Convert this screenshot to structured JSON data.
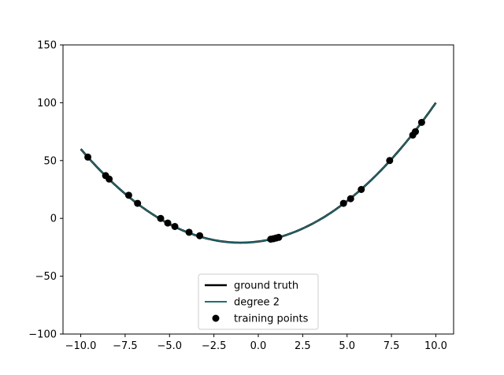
{
  "chart_data": {
    "type": "line",
    "title": "",
    "xlabel": "",
    "ylabel": "",
    "xlim": [
      -11,
      11
    ],
    "ylim": [
      -100,
      150
    ],
    "x_ticks": [
      -10.0,
      -7.5,
      -5.0,
      -2.5,
      0.0,
      2.5,
      5.0,
      7.5,
      10.0
    ],
    "x_tick_labels": [
      "−10.0",
      "−7.5",
      "−5.0",
      "−2.5",
      "0.0",
      "2.5",
      "5.0",
      "7.5",
      "10.0"
    ],
    "y_ticks": [
      -100,
      -50,
      0,
      50,
      100,
      150
    ],
    "y_tick_labels": [
      "−100",
      "−50",
      "0",
      "50",
      "100",
      "150"
    ],
    "grid": false,
    "legend_position": "bottom-center",
    "series": [
      {
        "name": "ground truth",
        "kind": "line",
        "color": "#000000",
        "equation": "y = x^2 + 2x - 20",
        "x_range": [
          -10,
          10
        ]
      },
      {
        "name": "degree 2",
        "kind": "line",
        "color": "#1f6f73",
        "equation": "y = x^2 + 2x - 20",
        "x_range": [
          -10,
          10
        ]
      },
      {
        "name": "training points",
        "kind": "scatter",
        "color": "#000000",
        "x": [
          -9.6,
          -8.6,
          -8.4,
          -7.3,
          -6.8,
          -5.5,
          -5.1,
          -4.7,
          -3.9,
          -3.3,
          0.7,
          0.85,
          1.0,
          1.15,
          4.8,
          5.2,
          5.8,
          7.4,
          8.7,
          8.85,
          9.2
        ],
        "y": [
          53,
          37,
          34,
          20,
          13,
          0,
          -4,
          -7,
          -12,
          -15,
          -18,
          -17.6,
          -17,
          -16.4,
          13,
          17,
          25,
          50,
          72,
          75,
          83
        ]
      }
    ]
  }
}
